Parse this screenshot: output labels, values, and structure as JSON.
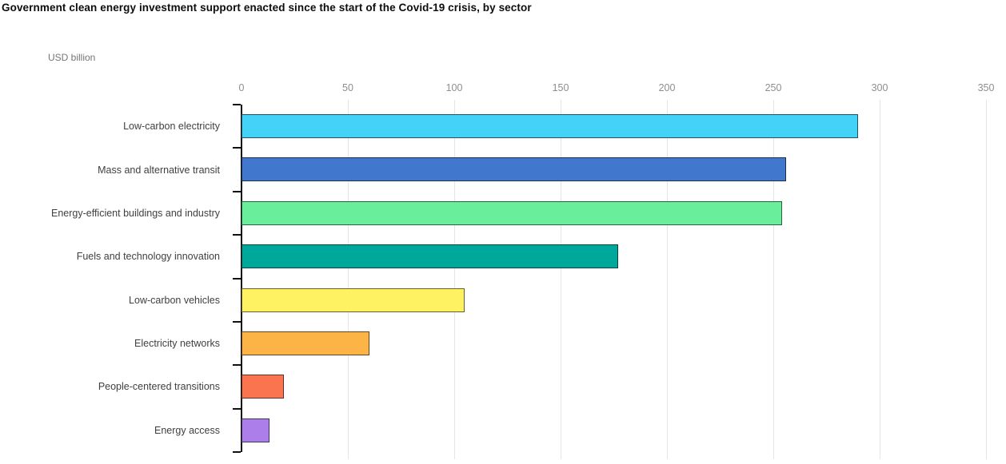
{
  "title": "Government clean energy investment support enacted since the start of the Covid-19 crisis, by sector",
  "unit_label": "USD billion",
  "chart_data": {
    "type": "bar",
    "orientation": "horizontal",
    "title": "Government clean energy investment support enacted since the start of the Covid-19 crisis, by sector",
    "xlabel": "USD billion",
    "ylabel": "",
    "xlim": [
      0,
      350
    ],
    "xticks": [
      0,
      50,
      100,
      150,
      200,
      250,
      300,
      350
    ],
    "grid": "vertical-gridlines-on",
    "legend": "none",
    "categories": [
      "Low-carbon electricity",
      "Mass and alternative transit",
      "Energy-efficient buildings and industry",
      "Fuels and technology innovation",
      "Low-carbon vehicles",
      "Electricity networks",
      "People-centered transitions",
      "Energy access"
    ],
    "values": [
      290,
      256,
      254,
      177,
      105,
      60,
      20,
      13
    ],
    "colors": [
      "#45D2F8",
      "#4277CE",
      "#69EF9B",
      "#00A89C",
      "#FEF263",
      "#FBB445",
      "#FB7450",
      "#AC7EE9"
    ],
    "bar_border_color": "rgba(0,0,0,0.6)",
    "axis_color": "#111111",
    "gridline_color": "#e5e5e5",
    "tick_label_color": "#8e8e8e",
    "category_label_color": "#404040"
  }
}
